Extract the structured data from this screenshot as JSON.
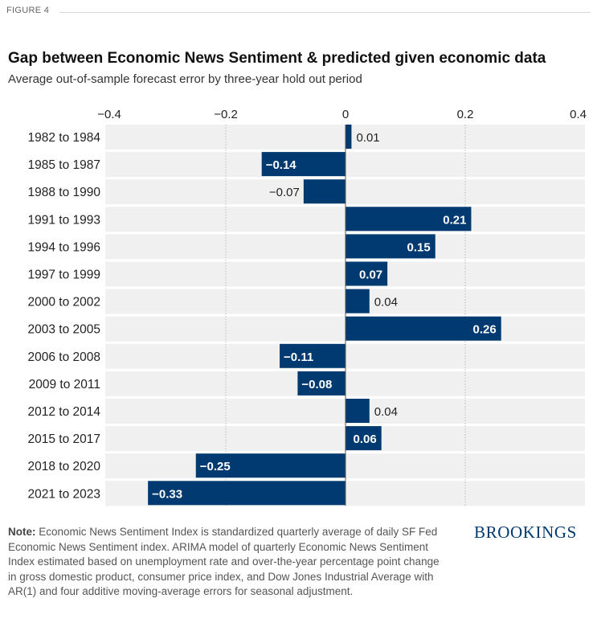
{
  "figure_label": "FIGURE 4",
  "brand": "BROOKINGS",
  "note": {
    "label": "Note:",
    "text": " Economic News Sentiment Index is standardized quarterly average of daily SF Fed Economic News Sentiment index. ARIMA model of quarterly Economic News Sentiment Index estimated based on unemployment rate and over-the-year percentage point change in gross domestic product, consumer price index, and Dow Jones Industrial Average with AR(1) and four additive moving-average errors for seasonal adjustment."
  },
  "colors": {
    "bar": "#003A70",
    "band": "#f0f0f0",
    "grid": "#bdbdbd"
  },
  "chart_data": {
    "type": "bar",
    "orientation": "horizontal",
    "title": "Gap between Economic News Sentiment & predicted given economic data",
    "subtitle": "Average out-of-sample forecast error by three-year hold out period",
    "categories": [
      "1982 to 1984",
      "1985 to 1987",
      "1988 to 1990",
      "1991 to 1993",
      "1994 to 1996",
      "1997 to 1999",
      "2000 to 2002",
      "2003 to 2005",
      "2006 to 2008",
      "2009 to 2011",
      "2012 to 2014",
      "2015 to 2017",
      "2018 to 2020",
      "2021 to 2023"
    ],
    "values": [
      0.01,
      -0.14,
      -0.07,
      0.21,
      0.15,
      0.07,
      0.04,
      0.26,
      -0.11,
      -0.08,
      0.04,
      0.06,
      -0.25,
      -0.33
    ],
    "data_labels": [
      "0.01",
      "−0.14",
      "−0.07",
      "0.21",
      "0.15",
      "0.07",
      "0.04",
      "0.26",
      "−0.11",
      "−0.08",
      "0.04",
      "0.06",
      "−0.25",
      "−0.33"
    ],
    "xlim": [
      -0.4,
      0.4
    ],
    "xticks": [
      -0.4,
      -0.2,
      0,
      0.2,
      0.4
    ],
    "xtick_labels": [
      "−0.4",
      "−0.2",
      "0",
      "0.2",
      "0.4"
    ],
    "xlabel": "",
    "ylabel": "",
    "grid": true,
    "axis_position": "top"
  }
}
